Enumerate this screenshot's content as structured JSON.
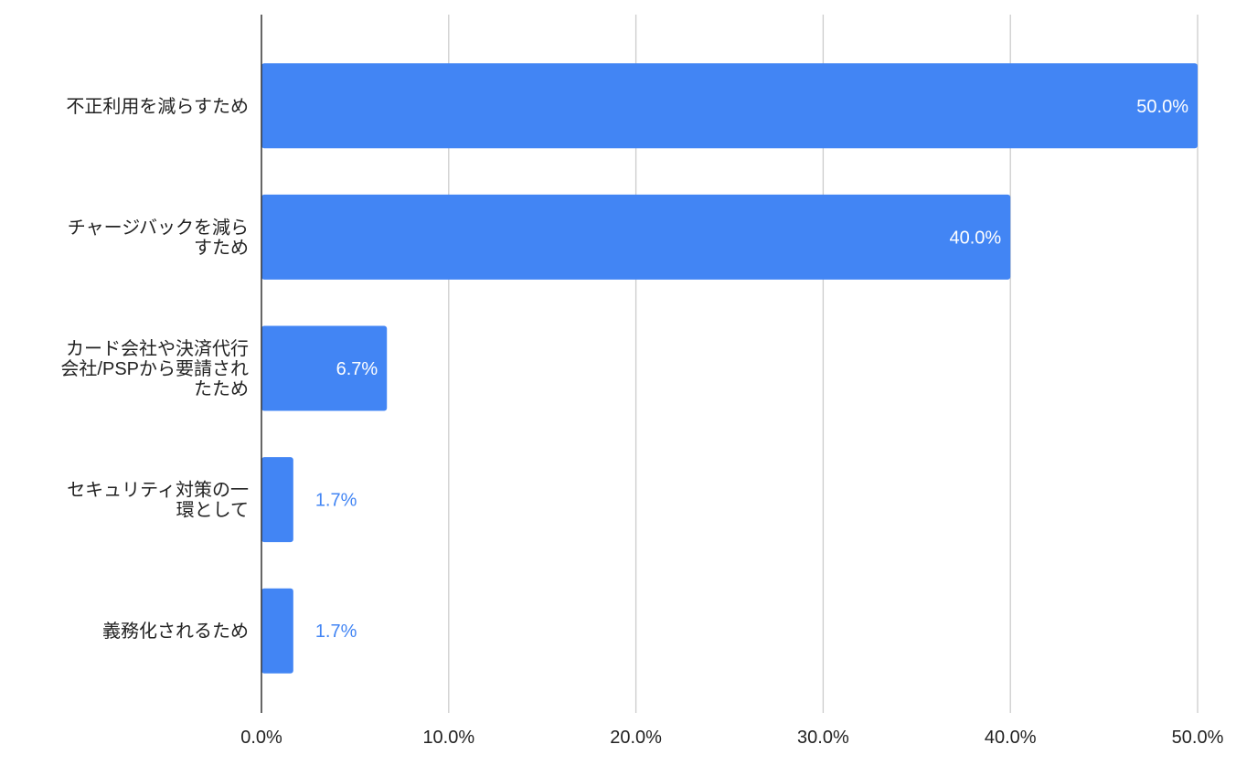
{
  "chart_data": {
    "type": "bar",
    "orientation": "horizontal",
    "categories": [
      [
        "不正利用を減らすため"
      ],
      [
        "チャージバックを減ら",
        "すため"
      ],
      [
        "カード会社や決済代行",
        "会社/PSPから要請され",
        "たため"
      ],
      [
        "セキュリティ対策の一",
        "環として"
      ],
      [
        "義務化されるため"
      ]
    ],
    "values": [
      50.0,
      40.0,
      6.7,
      1.7,
      1.7
    ],
    "value_labels": [
      "50.0%",
      "40.0%",
      "6.7%",
      "1.7%",
      "1.7%"
    ],
    "x_ticks": [
      0,
      10,
      20,
      30,
      40,
      50
    ],
    "x_tick_labels": [
      "0.0%",
      "10.0%",
      "20.0%",
      "30.0%",
      "40.0%",
      "50.0%"
    ],
    "xlim": [
      0,
      50
    ],
    "title": "",
    "xlabel": "",
    "ylabel": "",
    "grid": "vertical",
    "legend": "none",
    "colors": {
      "bar": "#4285f4",
      "label_inside": "#ffffff",
      "label_outside": "#4285f4",
      "grid": "#cccccc",
      "axis": "#333333",
      "text": "#222222"
    }
  }
}
